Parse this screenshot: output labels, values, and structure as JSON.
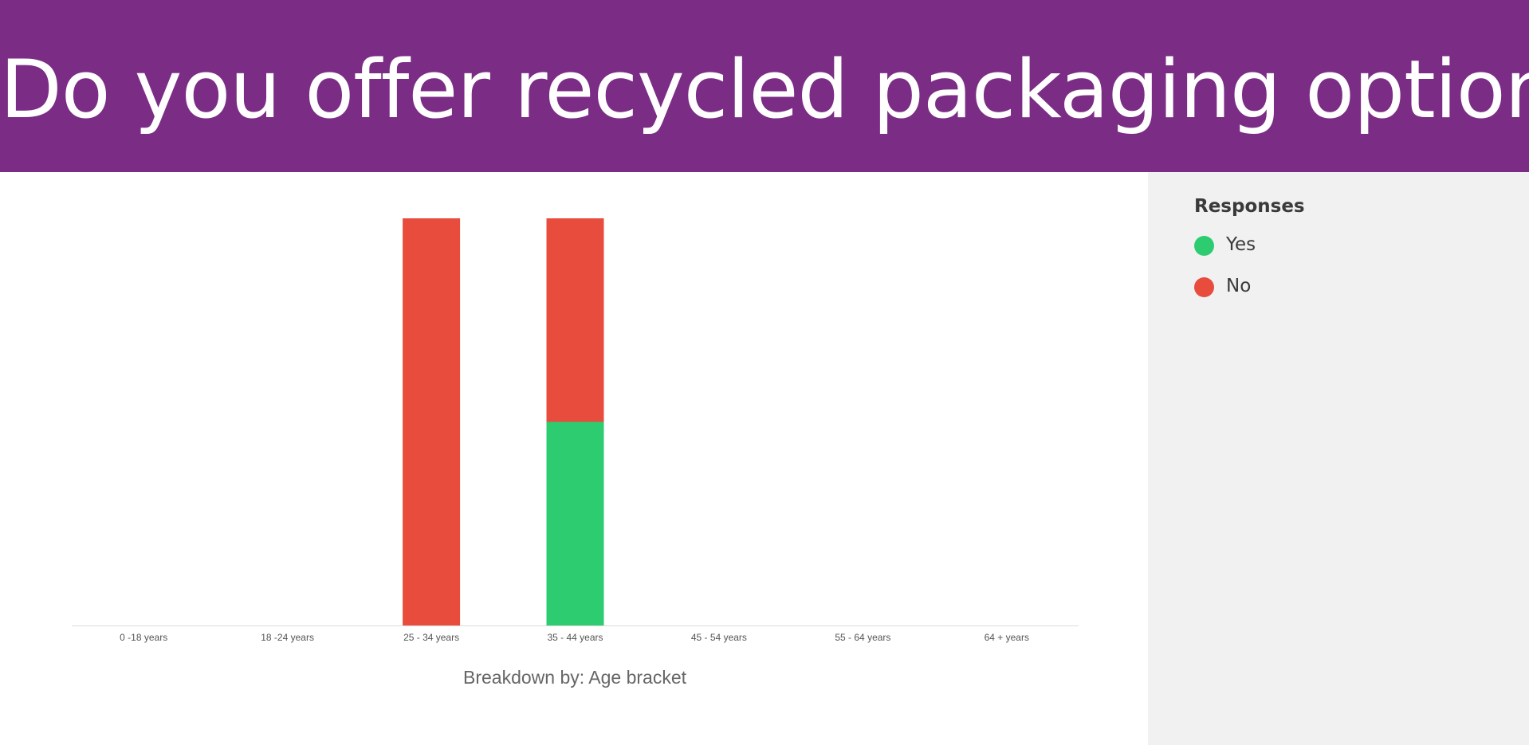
{
  "header": {
    "title": "Do you offer recycled packaging options"
  },
  "legend": {
    "title": "Responses",
    "items": [
      {
        "label": "Yes",
        "color": "#2ecc71"
      },
      {
        "label": "No",
        "color": "#e74c3c"
      }
    ]
  },
  "chart_data": {
    "type": "bar",
    "stacked": true,
    "categories": [
      "0 -18 years",
      "18 -24 years",
      "25 - 34 years",
      "35 - 44 years",
      "45 - 54 years",
      "55 - 64 years",
      "64 + years"
    ],
    "series": [
      {
        "name": "Yes",
        "color": "#2ecc71",
        "values": [
          0,
          0,
          0,
          1,
          0,
          0,
          0
        ]
      },
      {
        "name": "No",
        "color": "#e74c3c",
        "values": [
          0,
          0,
          2,
          1,
          0,
          0,
          0
        ]
      }
    ],
    "xlabel": "Breakdown by: Age bracket",
    "ylabel": "",
    "ylim": [
      0,
      2
    ],
    "grid": false,
    "legend_position": "right"
  }
}
